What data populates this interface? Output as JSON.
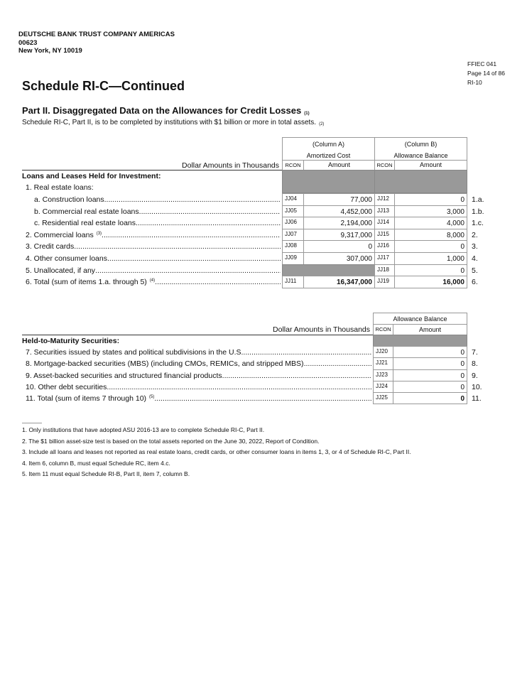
{
  "header": {
    "bank_name": "DEUTSCHE BANK TRUST COMPANY AMERICAS",
    "rssd": "00623",
    "city": "New York, NY 10019",
    "form": "FFIEC 041",
    "page": "Page 14 of 86",
    "page_code": "RI-10"
  },
  "title": "Schedule RI-C—Continued",
  "part_title": "Part II. Disaggregated Data on the Allowances for Credit Losses",
  "part_fn": "(1)",
  "subtitle": "Schedule RI-C, Part II, is to be completed by institutions with $1 billion or more in total assets.",
  "subtitle_fn": "(2)",
  "table1": {
    "dollar_label": "Dollar Amounts in Thousands",
    "colA": {
      "title": "(Column A)",
      "sub": "Amortized Cost"
    },
    "colB": {
      "title": "(Column B)",
      "sub": "Allowance Balance"
    },
    "rcon": "RCON",
    "amount": "Amount",
    "section": "Loans and Leases Held for Investment:",
    "group": "1. Real estate loans:",
    "rows": [
      {
        "label": "a. Construction loans",
        "fn": "",
        "indent": 2,
        "codeA": "JJ04",
        "amtA": "77,000",
        "codeB": "JJ12",
        "amtB": "0",
        "num": "1.a.",
        "bold": false
      },
      {
        "label": "b. Commercial real estate loans",
        "fn": "",
        "indent": 2,
        "codeA": "JJ05",
        "amtA": "4,452,000",
        "codeB": "JJ13",
        "amtB": "3,000",
        "num": "1.b.",
        "bold": false
      },
      {
        "label": "c. Residential real estate loans",
        "fn": "",
        "indent": 2,
        "codeA": "JJ06",
        "amtA": "2,194,000",
        "codeB": "JJ14",
        "amtB": "4,000",
        "num": "1.c.",
        "bold": false
      },
      {
        "label": "2. Commercial loans",
        "fn": "(3)",
        "indent": 1,
        "codeA": "JJ07",
        "amtA": "9,317,000",
        "codeB": "JJ15",
        "amtB": "8,000",
        "num": "2.",
        "bold": false
      },
      {
        "label": "3. Credit cards",
        "fn": "",
        "indent": 1,
        "codeA": "JJ08",
        "amtA": "0",
        "codeB": "JJ16",
        "amtB": "0",
        "num": "3.",
        "bold": false
      },
      {
        "label": "4. Other consumer loans",
        "fn": "",
        "indent": 1,
        "codeA": "JJ09",
        "amtA": "307,000",
        "codeB": "JJ17",
        "amtB": "1,000",
        "num": "4.",
        "bold": false
      },
      {
        "label": "5. Unallocated, if any",
        "fn": "",
        "indent": 1,
        "codeA": null,
        "amtA": null,
        "codeB": "JJ18",
        "amtB": "0",
        "num": "5.",
        "bold": false
      },
      {
        "label": "6. Total (sum of items 1.a. through 5)",
        "fn": "(4)",
        "indent": 1,
        "codeA": "JJ11",
        "amtA": "16,347,000",
        "codeB": "JJ19",
        "amtB": "16,000",
        "num": "6.",
        "bold": true
      }
    ]
  },
  "table2": {
    "dollar_label": "Dollar Amounts in Thousands",
    "col": "Allowance Balance",
    "rcon": "RCON",
    "amount": "Amount",
    "section": "Held-to-Maturity Securities:",
    "rows": [
      {
        "label": "7. Securities issued by states and political subdivisions in the U.S",
        "fn": "",
        "code": "JJ20",
        "amt": "0",
        "num": "7.",
        "bold": false
      },
      {
        "label": "8. Mortgage-backed securities (MBS) (including CMOs, REMICs, and stripped MBS)",
        "fn": "",
        "code": "JJ21",
        "amt": "0",
        "num": "8.",
        "bold": false
      },
      {
        "label": "9. Asset-backed securities and structured financial products",
        "fn": "",
        "code": "JJ23",
        "amt": "0",
        "num": "9.",
        "bold": false
      },
      {
        "label": "10. Other debt securities",
        "fn": "",
        "code": "JJ24",
        "amt": "0",
        "num": "10.",
        "bold": false
      },
      {
        "label": "11. Total (sum of items 7 through 10)",
        "fn": "(5)",
        "code": "JJ25",
        "amt": "0",
        "num": "11.",
        "bold": true
      }
    ]
  },
  "footnotes": [
    "1. Only institutions that have adopted ASU 2016-13 are to complete Schedule RI-C, Part II.",
    "2. The $1 billion asset-size test is based on the total assets reported on the June 30, 2022, Report of Condition.",
    "3. Include all loans and leases not reported as real estate loans, credit cards, or other consumer loans in items 1, 3, or 4 of Schedule RI-C, Part II.",
    "4. Item 6, column B, must equal Schedule RC, item 4.c.",
    "5. Item 11 must equal Schedule RI-B, Part II, item 7, column B."
  ]
}
